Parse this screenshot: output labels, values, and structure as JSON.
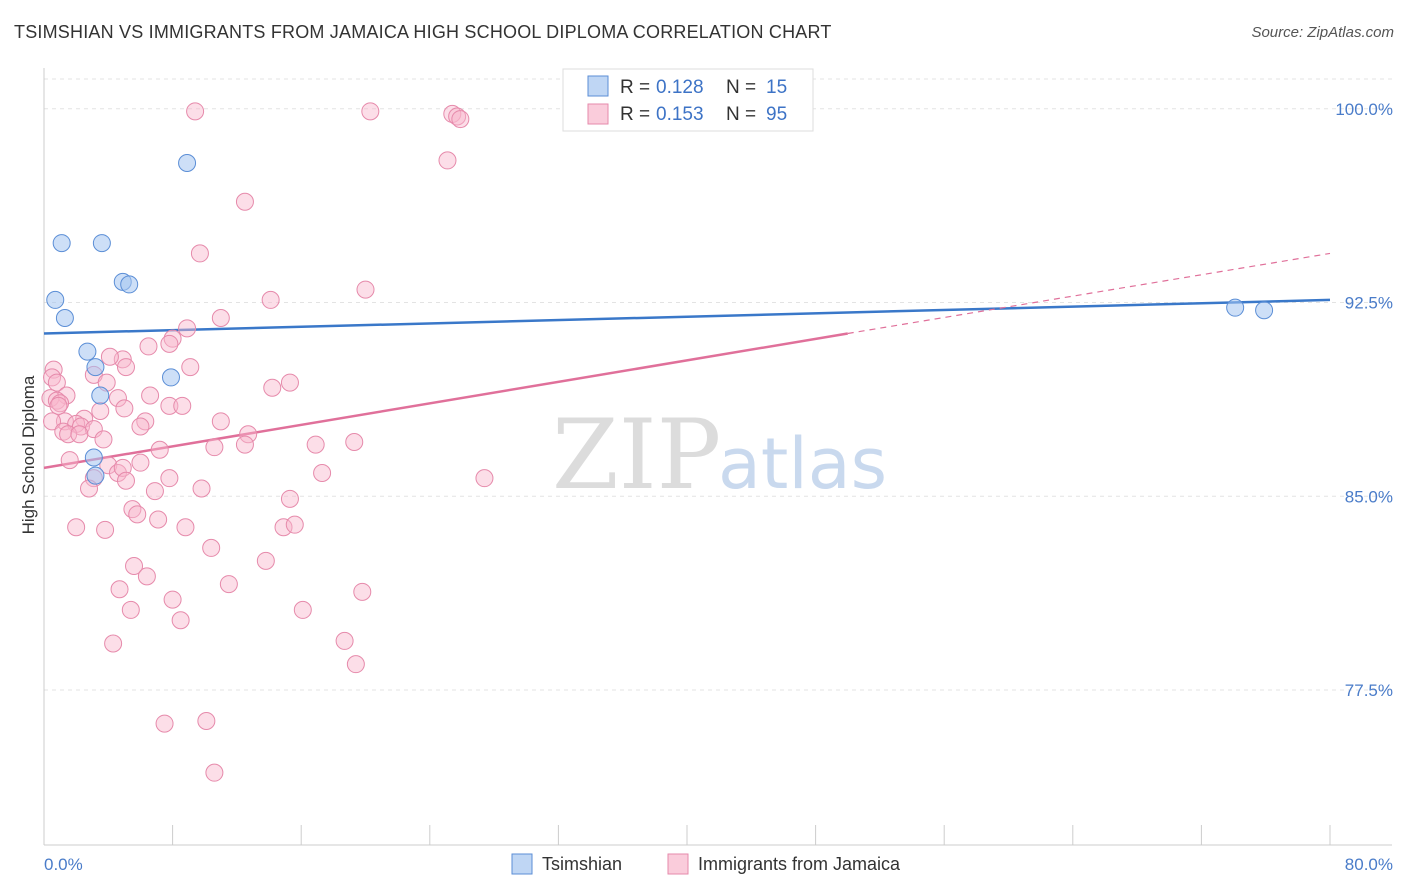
{
  "title": "TSIMSHIAN VS IMMIGRANTS FROM JAMAICA HIGH SCHOOL DIPLOMA CORRELATION CHART",
  "source": "Source: ZipAtlas.com",
  "watermark": {
    "zip": "ZIP",
    "atlas": "atlas"
  },
  "colors": {
    "blue": "#3a78c9",
    "pink": "#e0709a",
    "tick_label": "#4a7cc9"
  },
  "chart_data": {
    "type": "scatter",
    "ylabel": "High School Diploma",
    "xlabel": "",
    "xlim": [
      0,
      80
    ],
    "ylim": [
      71.5,
      101.5
    ],
    "x_tick_labels": [
      "0.0%",
      "80.0%"
    ],
    "y_ticks": [
      77.5,
      85.0,
      92.5,
      100.0
    ],
    "y_tick_labels": [
      "77.5%",
      "85.0%",
      "92.5%",
      "100.0%"
    ],
    "legend": [
      {
        "name": "Tsimshian",
        "r_label": "R =",
        "r": "0.128",
        "n_label": "N =",
        "n": "15"
      },
      {
        "name": "Immigrants from Jamaica",
        "r_label": "R =",
        "r": "0.153",
        "n_label": "N =",
        "n": "95"
      }
    ],
    "series": [
      {
        "name": "Tsimshian",
        "color": "#5b8ed6",
        "points": [
          [
            8.9,
            97.9
          ],
          [
            1.1,
            94.8
          ],
          [
            3.6,
            94.8
          ],
          [
            4.9,
            93.3
          ],
          [
            5.3,
            93.2
          ],
          [
            0.7,
            92.6
          ],
          [
            1.3,
            91.9
          ],
          [
            2.7,
            90.6
          ],
          [
            3.2,
            90.0
          ],
          [
            7.9,
            89.6
          ],
          [
            3.5,
            88.9
          ],
          [
            3.1,
            86.5
          ],
          [
            3.2,
            85.8
          ],
          [
            74.1,
            92.3
          ],
          [
            75.9,
            92.2
          ]
        ],
        "trend": {
          "x0": 0,
          "y0": 91.3,
          "x1": 80,
          "y1": 92.6
        }
      },
      {
        "name": "Immigrants from Jamaica",
        "color": "#e68aab",
        "points": [
          [
            9.4,
            99.9
          ],
          [
            20.3,
            99.9
          ],
          [
            25.4,
            99.8
          ],
          [
            25.7,
            99.7
          ],
          [
            25.9,
            99.6
          ],
          [
            25.1,
            98.0
          ],
          [
            12.5,
            96.4
          ],
          [
            9.7,
            94.4
          ],
          [
            20.0,
            93.0
          ],
          [
            14.1,
            92.6
          ],
          [
            11.0,
            91.9
          ],
          [
            8.9,
            91.5
          ],
          [
            8.0,
            91.1
          ],
          [
            7.8,
            90.9
          ],
          [
            6.5,
            90.8
          ],
          [
            4.9,
            90.3
          ],
          [
            4.1,
            90.4
          ],
          [
            0.6,
            89.9
          ],
          [
            0.5,
            89.6
          ],
          [
            5.1,
            90.0
          ],
          [
            9.1,
            90.0
          ],
          [
            3.1,
            89.7
          ],
          [
            0.8,
            89.4
          ],
          [
            3.9,
            89.4
          ],
          [
            14.2,
            89.2
          ],
          [
            15.3,
            89.4
          ],
          [
            1.4,
            88.9
          ],
          [
            0.4,
            88.8
          ],
          [
            0.8,
            88.7
          ],
          [
            1.0,
            88.6
          ],
          [
            0.9,
            88.5
          ],
          [
            6.6,
            88.9
          ],
          [
            7.8,
            88.5
          ],
          [
            8.6,
            88.5
          ],
          [
            4.6,
            88.8
          ],
          [
            5.0,
            88.4
          ],
          [
            3.5,
            88.3
          ],
          [
            2.5,
            88.0
          ],
          [
            1.3,
            87.9
          ],
          [
            2.0,
            87.8
          ],
          [
            0.5,
            87.9
          ],
          [
            2.3,
            87.7
          ],
          [
            3.1,
            87.6
          ],
          [
            6.3,
            87.9
          ],
          [
            11.0,
            87.9
          ],
          [
            6.0,
            87.7
          ],
          [
            1.2,
            87.5
          ],
          [
            1.5,
            87.4
          ],
          [
            2.2,
            87.4
          ],
          [
            12.7,
            87.4
          ],
          [
            3.7,
            87.2
          ],
          [
            12.5,
            87.0
          ],
          [
            7.2,
            86.8
          ],
          [
            10.6,
            86.9
          ],
          [
            16.9,
            87.0
          ],
          [
            19.3,
            87.1
          ],
          [
            1.6,
            86.4
          ],
          [
            4.0,
            86.2
          ],
          [
            4.6,
            85.9
          ],
          [
            6.0,
            86.3
          ],
          [
            4.9,
            86.1
          ],
          [
            3.1,
            85.7
          ],
          [
            5.1,
            85.6
          ],
          [
            7.8,
            85.7
          ],
          [
            17.3,
            85.9
          ],
          [
            27.4,
            85.7
          ],
          [
            2.8,
            85.3
          ],
          [
            6.9,
            85.2
          ],
          [
            9.8,
            85.3
          ],
          [
            15.3,
            84.9
          ],
          [
            5.5,
            84.5
          ],
          [
            5.8,
            84.3
          ],
          [
            7.1,
            84.1
          ],
          [
            2.0,
            83.8
          ],
          [
            3.8,
            83.7
          ],
          [
            8.8,
            83.8
          ],
          [
            14.9,
            83.8
          ],
          [
            15.6,
            83.9
          ],
          [
            10.4,
            83.0
          ],
          [
            13.8,
            82.5
          ],
          [
            5.6,
            82.3
          ],
          [
            6.4,
            81.9
          ],
          [
            11.5,
            81.6
          ],
          [
            4.7,
            81.4
          ],
          [
            19.8,
            81.3
          ],
          [
            8.0,
            81.0
          ],
          [
            5.4,
            80.6
          ],
          [
            16.1,
            80.6
          ],
          [
            8.5,
            80.2
          ],
          [
            4.3,
            79.3
          ],
          [
            18.7,
            79.4
          ],
          [
            19.4,
            78.5
          ],
          [
            7.5,
            76.2
          ],
          [
            10.1,
            76.3
          ],
          [
            10.6,
            74.3
          ]
        ],
        "trend": {
          "x0": 0,
          "y0": 86.1,
          "x1": 50,
          "y1": 91.3,
          "dash_x0": 50,
          "dash_y0": 91.3,
          "dash_x1": 80,
          "dash_y1": 94.4
        }
      }
    ]
  }
}
